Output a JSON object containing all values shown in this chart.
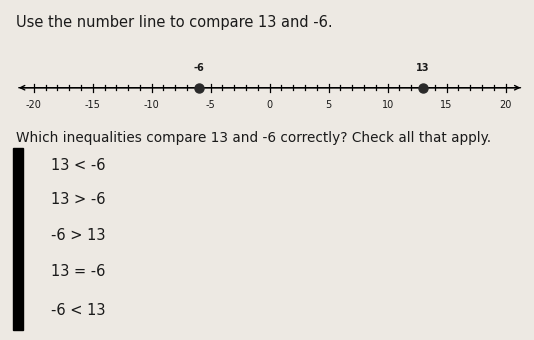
{
  "title": "Use the number line to compare 13 and -6.",
  "tick_labels": [
    -20,
    -15,
    -10,
    -5,
    0,
    5,
    10,
    15,
    20
  ],
  "marked_points": [
    -6,
    13
  ],
  "point_labels": [
    "-6",
    "13"
  ],
  "question_text": "Which inequalities compare 13 and -6 correctly? Check all that apply.",
  "options": [
    "13 < -6",
    "13 > -6",
    "-6 > 13",
    "13 = -6",
    "-6 < 13"
  ],
  "bg_color": "#ede9e3",
  "text_color": "#1a1a1a",
  "font_size_title": 10.5,
  "font_size_question": 9.8,
  "font_size_options": 10.5,
  "font_size_tick": 7.0,
  "font_size_pt_label": 7.0
}
